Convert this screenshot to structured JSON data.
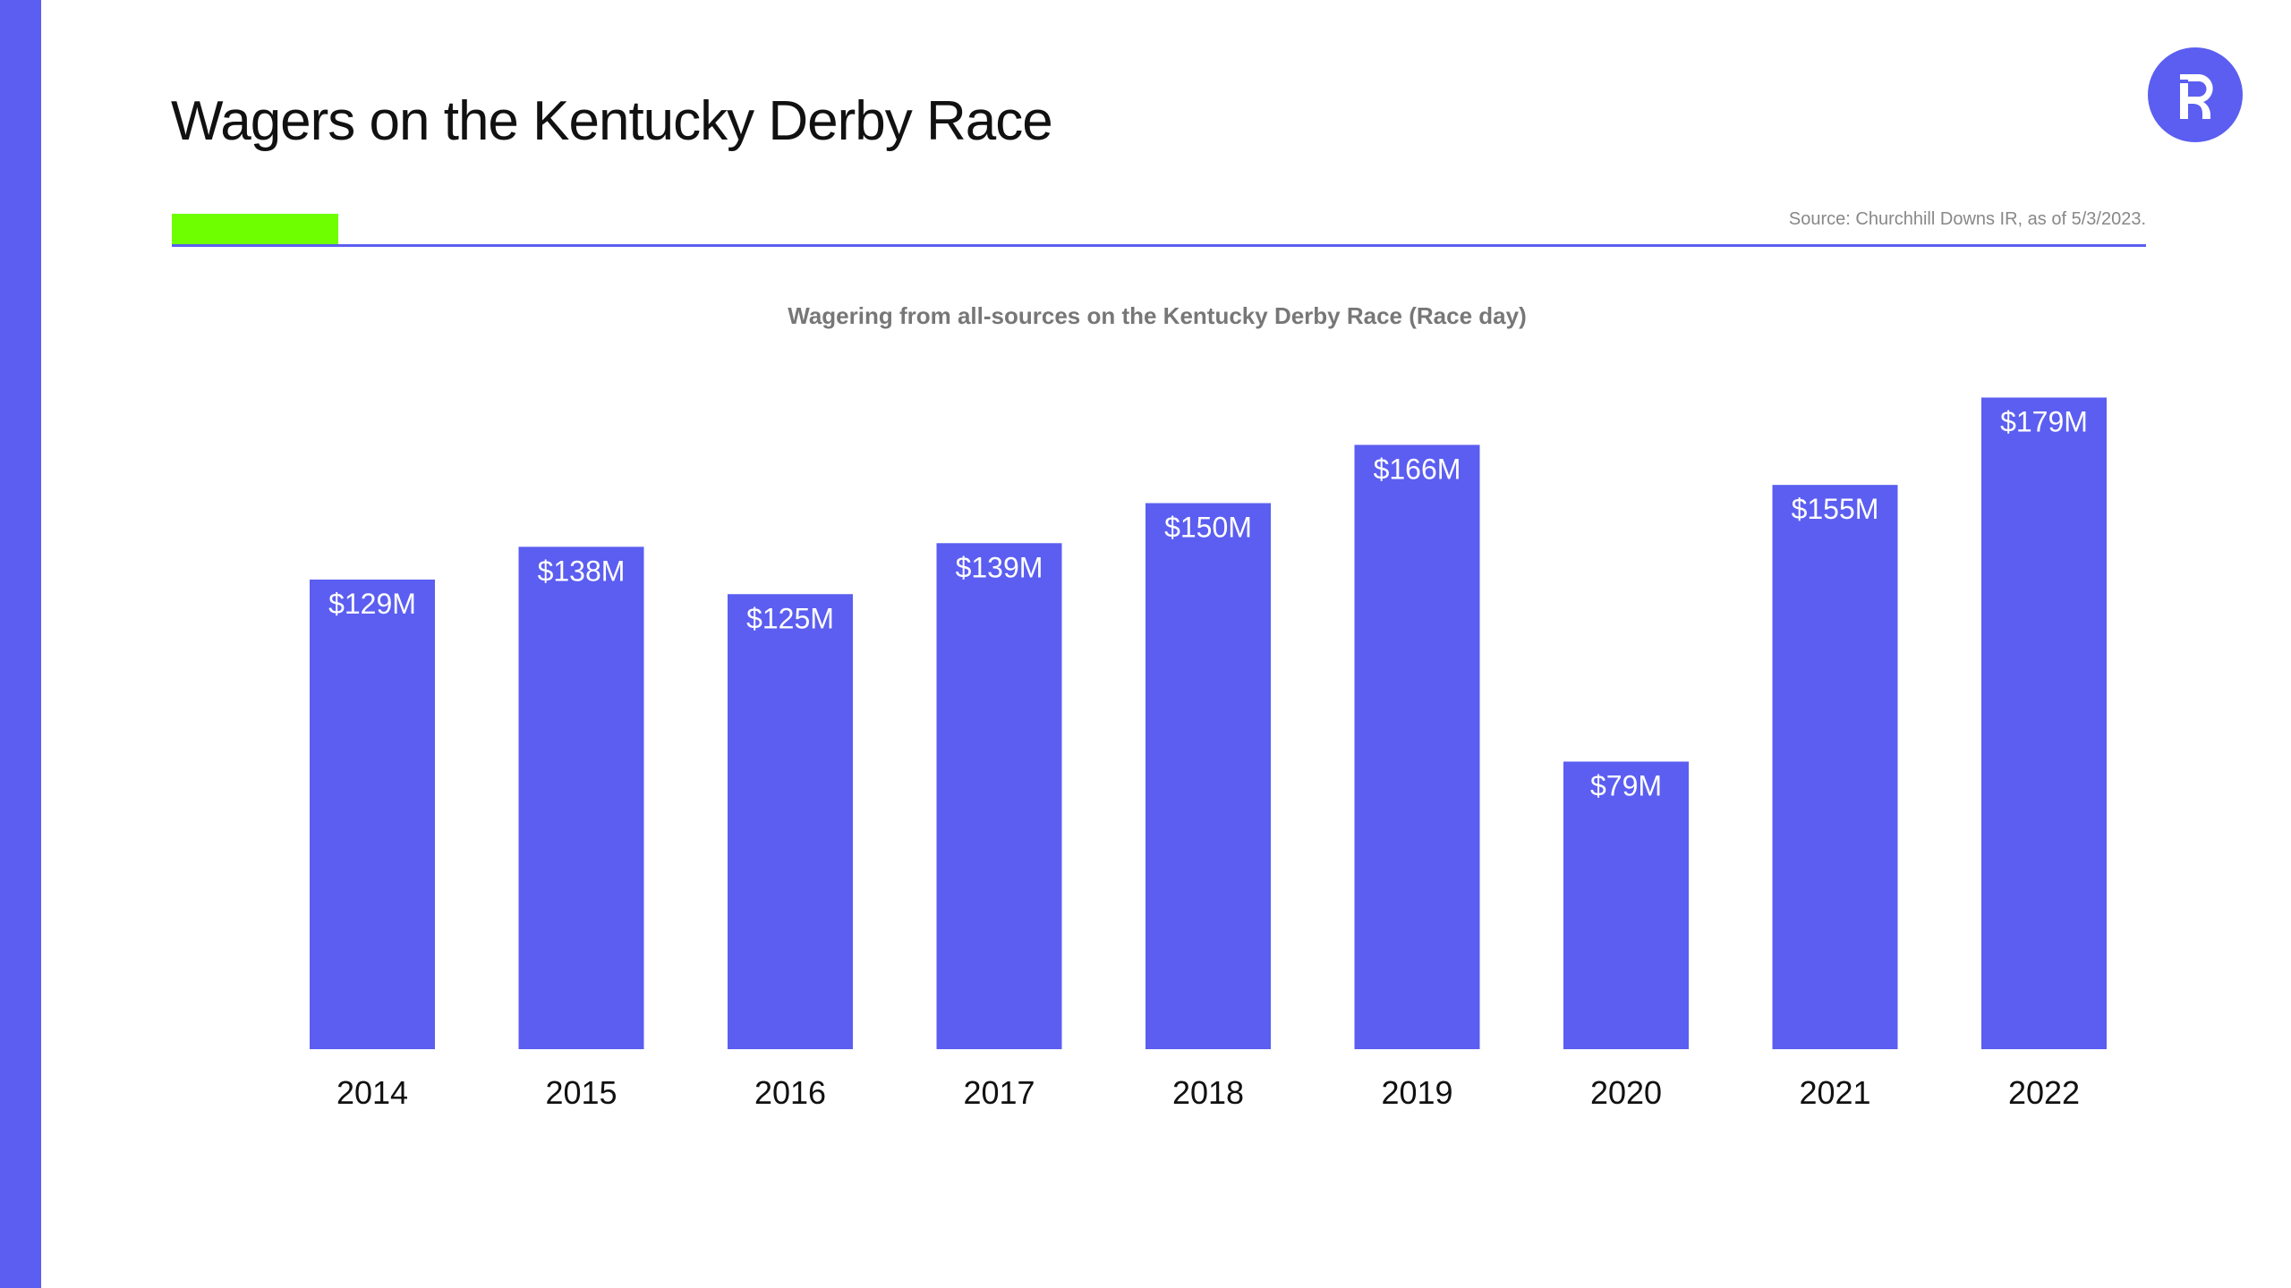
{
  "header": {
    "title": "Wagers on the Kentucky Derby Race",
    "source": "Source: Churchhill Downs IR, as of 5/3/2023.",
    "logo_text": "R"
  },
  "colors": {
    "accent": "#5b5ef0",
    "highlight": "#6eff00"
  },
  "chart_data": {
    "type": "bar",
    "title": "Wagering from all-sources on the Kentucky Derby Race (Race day)",
    "categories": [
      "2014",
      "2015",
      "2016",
      "2017",
      "2018",
      "2019",
      "2020",
      "2021",
      "2022"
    ],
    "values": [
      129,
      138,
      125,
      139,
      150,
      166,
      79,
      155,
      179
    ],
    "data_labels": [
      "$129M",
      "$138M",
      "$125M",
      "$139M",
      "$150M",
      "$166M",
      "$79M",
      "$155M",
      "$179M"
    ],
    "unit": "$M",
    "xlabel": "",
    "ylabel": "",
    "grid": false,
    "legend": "none",
    "bar_color": "#5b5ef0"
  }
}
